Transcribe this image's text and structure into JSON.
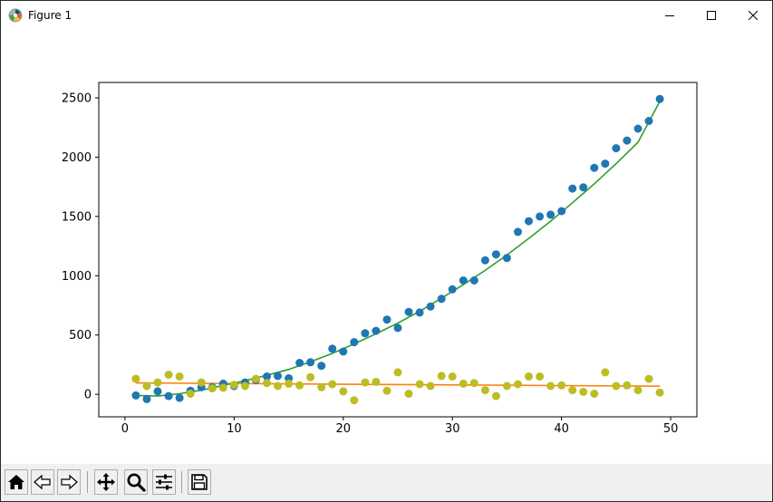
{
  "window": {
    "title": "Figure 1",
    "controls": {
      "minimize": "minimize-icon",
      "maximize": "maximize-icon",
      "close": "close-icon"
    }
  },
  "toolbar": {
    "buttons": [
      {
        "name": "home",
        "icon": "home-icon",
        "label": "Home"
      },
      {
        "name": "back",
        "icon": "back-arrow-icon",
        "label": "Back"
      },
      {
        "name": "forward",
        "icon": "forward-arrow-icon",
        "label": "Forward"
      },
      {
        "name": "pan",
        "icon": "pan-icon",
        "label": "Pan"
      },
      {
        "name": "zoom",
        "icon": "zoom-icon",
        "label": "Zoom"
      },
      {
        "name": "subplots",
        "icon": "subplots-icon",
        "label": "Configure subplots"
      },
      {
        "name": "save",
        "icon": "save-icon",
        "label": "Save"
      }
    ]
  },
  "chart_data": {
    "type": "scatter",
    "title": "",
    "xlabel": "",
    "ylabel": "",
    "xlim": [
      -2.4,
      52.4
    ],
    "ylim": [
      -190,
      2630
    ],
    "xticks": [
      0,
      10,
      20,
      30,
      40,
      50
    ],
    "yticks": [
      0,
      500,
      1000,
      1500,
      2000,
      2500
    ],
    "grid": false,
    "legend": "none",
    "colors": {
      "blue": "#1f77b4",
      "yellow": "#bcbd22",
      "orange": "#ff7f0e",
      "green": "#2ca02c"
    },
    "series": [
      {
        "kind": "scatter",
        "color": "#1f77b4",
        "x": [
          1,
          2,
          3,
          4,
          5,
          6,
          7,
          8,
          9,
          10,
          11,
          12,
          13,
          14,
          15,
          16,
          17,
          18,
          19,
          20,
          21,
          22,
          23,
          24,
          25,
          26,
          27,
          28,
          29,
          30,
          31,
          32,
          33,
          34,
          35,
          36,
          37,
          38,
          39,
          40,
          41,
          42,
          43,
          44,
          45,
          46,
          47,
          48,
          49
        ],
        "y": [
          -10,
          -40,
          25,
          -15,
          -30,
          30,
          60,
          60,
          90,
          70,
          100,
          120,
          150,
          155,
          135,
          265,
          270,
          240,
          385,
          360,
          440,
          515,
          535,
          630,
          560,
          695,
          690,
          740,
          805,
          885,
          960,
          960,
          1130,
          1180,
          1150,
          1370,
          1460,
          1500,
          1515,
          1545,
          1735,
          1745,
          1910,
          1945,
          2075,
          2140,
          2240,
          2305,
          2490
        ]
      },
      {
        "kind": "scatter",
        "color": "#bcbd22",
        "x": [
          1,
          2,
          3,
          4,
          5,
          6,
          7,
          8,
          9,
          10,
          11,
          12,
          13,
          14,
          15,
          16,
          17,
          18,
          19,
          20,
          21,
          22,
          23,
          24,
          25,
          26,
          27,
          28,
          29,
          30,
          31,
          32,
          33,
          34,
          35,
          36,
          37,
          38,
          39,
          40,
          41,
          42,
          43,
          44,
          45,
          46,
          47,
          48,
          49
        ],
        "y": [
          130,
          70,
          100,
          165,
          150,
          5,
          100,
          50,
          55,
          80,
          70,
          130,
          95,
          70,
          90,
          75,
          145,
          60,
          85,
          25,
          -50,
          100,
          105,
          30,
          185,
          5,
          85,
          70,
          155,
          150,
          90,
          95,
          35,
          -15,
          70,
          85,
          150,
          150,
          70,
          75,
          35,
          20,
          5,
          185,
          70,
          75,
          35,
          130,
          15
        ]
      },
      {
        "kind": "line",
        "color": "#ff7f0e",
        "x": [
          1,
          49
        ],
        "y": [
          96,
          68
        ]
      },
      {
        "kind": "line",
        "color": "#2ca02c",
        "x": [
          1,
          3,
          5,
          7,
          9,
          11,
          13,
          15,
          17,
          19,
          21,
          23,
          25,
          27,
          29,
          31,
          33,
          35,
          37,
          39,
          41,
          43,
          45,
          47,
          49
        ],
        "y": [
          -10,
          -15,
          5,
          35,
          75,
          115,
          160,
          210,
          275,
          345,
          425,
          510,
          600,
          700,
          810,
          925,
          1045,
          1175,
          1315,
          1460,
          1615,
          1775,
          1945,
          2125,
          2470
        ]
      }
    ]
  }
}
